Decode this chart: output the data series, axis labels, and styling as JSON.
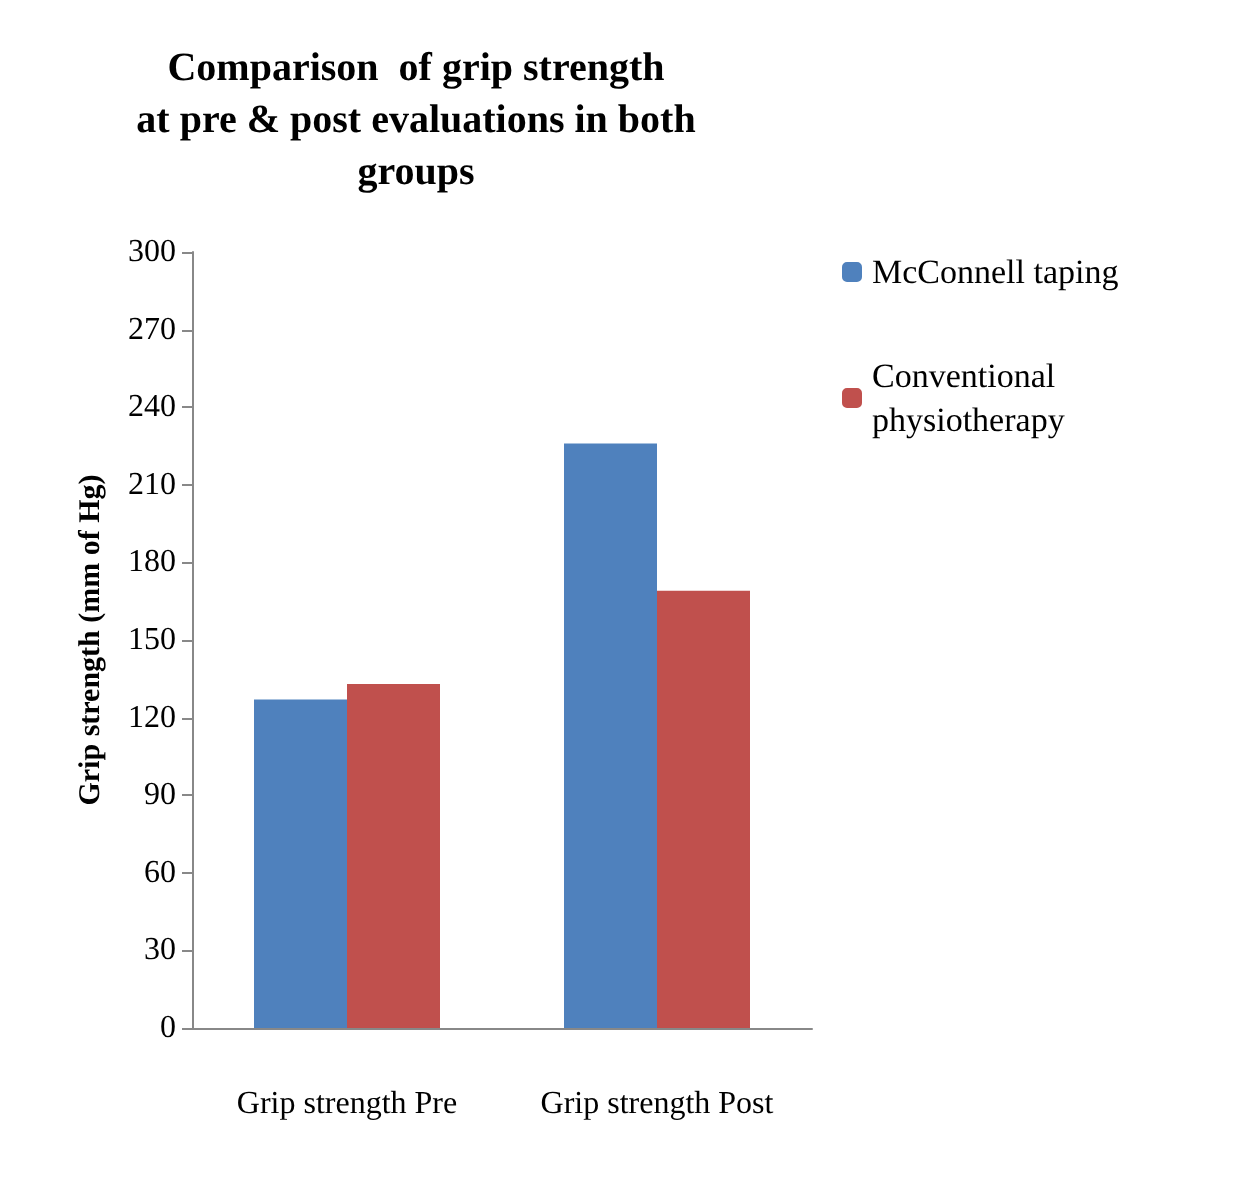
{
  "chart_data": {
    "type": "bar",
    "title": "Comparison  of grip strength\nat pre & post evaluations in both\ngroups",
    "ylabel": "Grip strength (mm of Hg)",
    "categories": [
      "Grip strength Pre",
      "Grip strength Post"
    ],
    "series": [
      {
        "name": "McConnell taping",
        "color": "#4f81bd",
        "values": [
          127,
          226
        ]
      },
      {
        "name": "Conventional physiotherapy",
        "color": "#c0504d",
        "values": [
          133,
          169
        ]
      }
    ],
    "ylim": [
      0,
      300
    ],
    "yticks": [
      0,
      30,
      60,
      90,
      120,
      150,
      180,
      210,
      240,
      270,
      300
    ],
    "grid": false,
    "legend": "top right"
  }
}
